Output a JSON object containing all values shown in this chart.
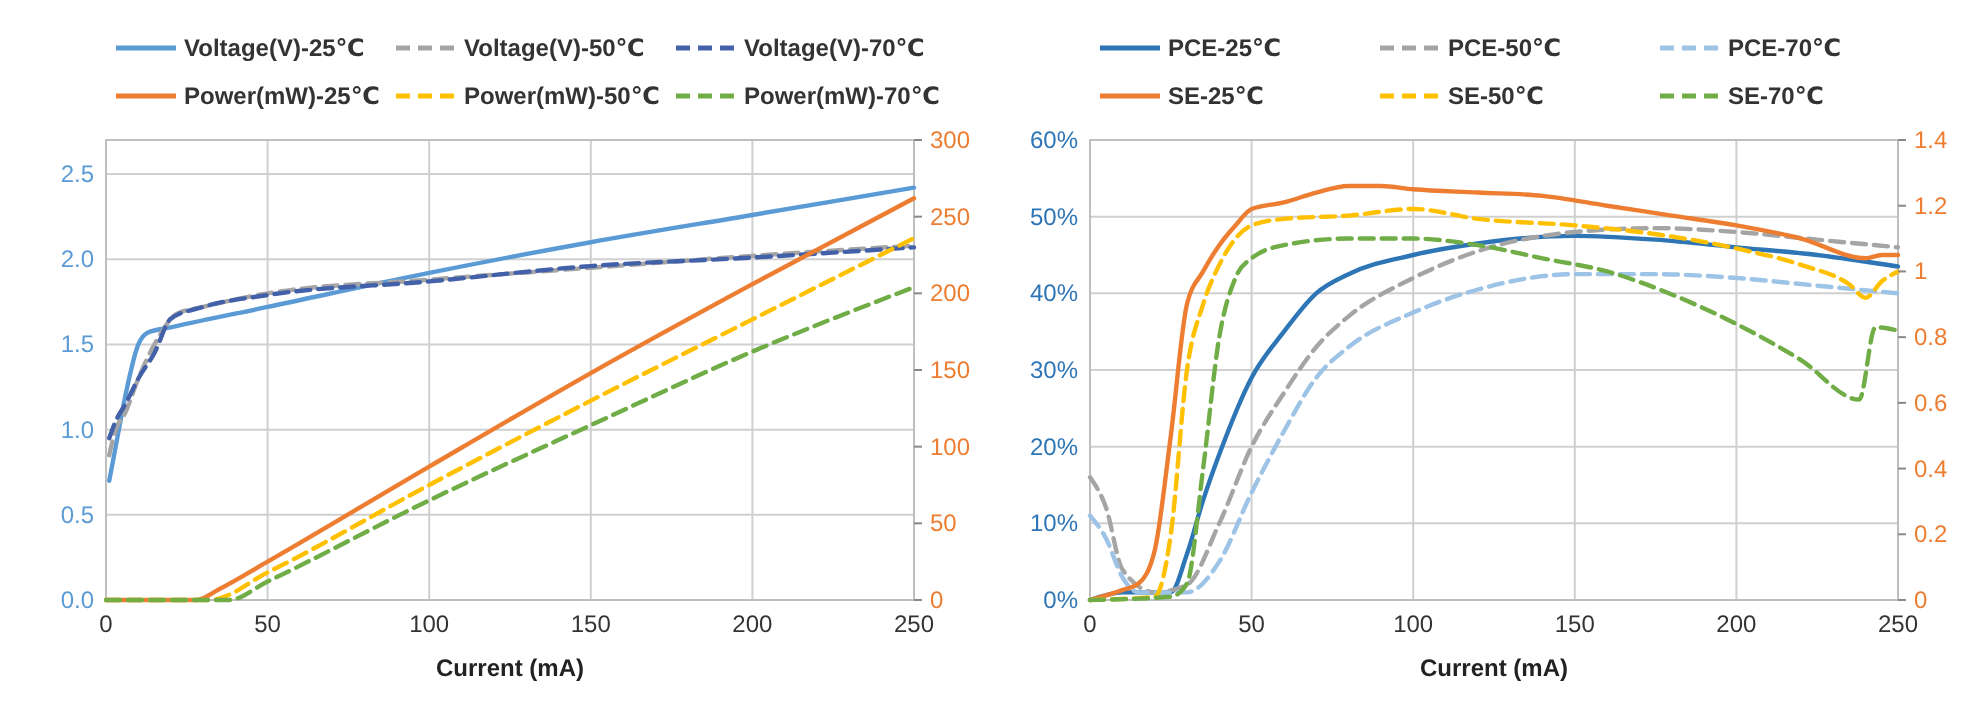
{
  "chart_data": [
    {
      "type": "line",
      "xlabel": "Current (mA)",
      "xlim": [
        0,
        250
      ],
      "xticks": [
        0,
        50,
        100,
        150,
        200,
        250
      ],
      "ylim": [
        0,
        2.7
      ],
      "yticks": [
        {
          "value": 0,
          "label": "0.0"
        },
        {
          "value": 0.5,
          "label": "0.5"
        },
        {
          "value": 1,
          "label": "1.0"
        },
        {
          "value": 1.5,
          "label": "1.5"
        },
        {
          "value": 2,
          "label": "2.0"
        },
        {
          "value": 2.5,
          "label": "2.5"
        }
      ],
      "y2lim": [
        0,
        300
      ],
      "y2ticks": [
        0,
        50,
        100,
        150,
        200,
        250,
        300
      ],
      "grid": true,
      "legend": "top",
      "series": [
        {
          "name": "Voltage(V)-25℃",
          "color": "#5b9bd5",
          "line_style": "solid",
          "x": [
            1,
            3,
            6,
            10,
            13,
            20,
            50,
            100,
            150,
            200,
            250
          ],
          "values": [
            0.7,
            0.9,
            1.2,
            1.5,
            1.57,
            1.6,
            1.72,
            1.92,
            2.1,
            2.26,
            2.42
          ]
        },
        {
          "name": "Voltage(V)-50℃",
          "color": "#a5a5a5",
          "line_style": "dashed",
          "x": [
            1,
            3,
            6,
            10,
            15,
            22,
            30,
            50,
            100,
            150,
            200,
            250
          ],
          "values": [
            0.85,
            1.0,
            1.1,
            1.3,
            1.5,
            1.68,
            1.72,
            1.8,
            1.88,
            1.95,
            2.02,
            2.08
          ]
        },
        {
          "name": "Voltage(V)-70℃",
          "color": "#4361a8",
          "line_style": "dashed",
          "x": [
            1,
            3,
            6,
            10,
            15,
            20,
            30,
            50,
            100,
            150,
            200,
            250
          ],
          "values": [
            0.95,
            1.05,
            1.15,
            1.3,
            1.45,
            1.65,
            1.72,
            1.79,
            1.87,
            1.96,
            2.01,
            2.07
          ]
        },
        {
          "name": "Power(mW)-25℃",
          "color": "#ed7d31",
          "line_style": "solid",
          "axis": "y2",
          "x": [
            0,
            28,
            35,
            50,
            100,
            150,
            200,
            250
          ],
          "values": [
            0,
            0,
            7,
            25,
            87,
            148,
            206,
            262
          ]
        },
        {
          "name": "Power(mW)-50℃",
          "color": "#ffc000",
          "line_style": "dashed",
          "axis": "y2",
          "x": [
            0,
            32,
            50,
            100,
            150,
            200,
            250
          ],
          "values": [
            0,
            0,
            18,
            75,
            130,
            183,
            236
          ]
        },
        {
          "name": "Power(mW)-70℃",
          "color": "#70ad47",
          "line_style": "dashed",
          "axis": "y2",
          "x": [
            0,
            38,
            50,
            100,
            150,
            200,
            250
          ],
          "values": [
            0,
            0,
            12,
            65,
            114,
            162,
            204
          ]
        }
      ]
    },
    {
      "type": "line",
      "xlabel": "Current (mA)",
      "xlim": [
        0,
        250
      ],
      "xticks": [
        0,
        50,
        100,
        150,
        200,
        250
      ],
      "ylim": [
        0,
        60
      ],
      "yticks": [
        {
          "value": 0,
          "label": "0%"
        },
        {
          "value": 10,
          "label": "10%"
        },
        {
          "value": 20,
          "label": "20%"
        },
        {
          "value": 30,
          "label": "30%"
        },
        {
          "value": 40,
          "label": "40%"
        },
        {
          "value": 50,
          "label": "50%"
        },
        {
          "value": 60,
          "label": "60%"
        }
      ],
      "y2lim": [
        0,
        1.4
      ],
      "y2ticks": [
        0,
        0.2,
        0.4,
        0.6,
        0.8,
        1,
        1.2,
        1.4
      ],
      "grid": true,
      "legend": "top",
      "series": [
        {
          "name": "PCE-25℃",
          "color": "#2e75b6",
          "line_style": "solid",
          "x": [
            0,
            10,
            25,
            30,
            35,
            40,
            50,
            60,
            70,
            80,
            100,
            120,
            150,
            175,
            200,
            225,
            250
          ],
          "values": [
            0,
            1,
            1,
            6,
            13,
            19,
            29,
            35,
            40,
            42.5,
            45,
            46.5,
            47.5,
            47,
            46,
            45,
            43.5
          ]
        },
        {
          "name": "PCE-50℃",
          "color": "#a5a5a5",
          "line_style": "dashed",
          "x": [
            0,
            5,
            10,
            20,
            30,
            40,
            50,
            60,
            70,
            80,
            100,
            120,
            150,
            175,
            200,
            225,
            250
          ],
          "values": [
            16,
            12,
            4,
            1,
            2,
            10,
            20,
            27,
            33,
            37,
            42,
            45.5,
            48,
            48.5,
            48,
            47,
            46
          ]
        },
        {
          "name": "PCE-70℃",
          "color": "#9dc3e6",
          "line_style": "dashed",
          "x": [
            0,
            5,
            10,
            15,
            30,
            40,
            50,
            60,
            70,
            80,
            100,
            120,
            150,
            175,
            200,
            225,
            250
          ],
          "values": [
            11,
            8,
            3,
            1,
            1,
            5,
            14,
            22,
            29,
            33,
            37.5,
            40.5,
            42.5,
            42.5,
            42,
            41,
            40
          ]
        },
        {
          "name": "SE-25℃",
          "color": "#ed7d31",
          "line_style": "solid",
          "axis": "y2",
          "x": [
            0,
            10,
            15,
            20,
            25,
            30,
            35,
            40,
            45,
            50,
            60,
            70,
            80,
            90,
            100,
            120,
            140,
            160,
            180,
            200,
            220,
            240,
            245,
            250
          ],
          "values": [
            0,
            0.03,
            0.05,
            0.15,
            0.5,
            0.9,
            1.0,
            1.08,
            1.14,
            1.19,
            1.21,
            1.24,
            1.26,
            1.26,
            1.25,
            1.24,
            1.23,
            1.2,
            1.17,
            1.14,
            1.1,
            1.04,
            1.05,
            1.05
          ]
        },
        {
          "name": "SE-50℃",
          "color": "#ffc000",
          "line_style": "dashed",
          "axis": "y2",
          "x": [
            0,
            20,
            25,
            30,
            35,
            40,
            45,
            50,
            60,
            80,
            100,
            120,
            150,
            170,
            200,
            220,
            235,
            240,
            245,
            250
          ],
          "values": [
            0,
            0.01,
            0.2,
            0.7,
            0.9,
            1.02,
            1.1,
            1.14,
            1.16,
            1.17,
            1.19,
            1.16,
            1.14,
            1.12,
            1.07,
            1.02,
            0.96,
            0.92,
            0.97,
            1.0
          ]
        },
        {
          "name": "SE-70℃",
          "color": "#70ad47",
          "line_style": "dashed",
          "axis": "y2",
          "x": [
            0,
            25,
            30,
            35,
            40,
            45,
            50,
            60,
            80,
            100,
            120,
            140,
            160,
            180,
            200,
            220,
            238,
            243,
            250
          ],
          "values": [
            0,
            0.01,
            0.05,
            0.4,
            0.8,
            0.98,
            1.04,
            1.08,
            1.1,
            1.1,
            1.08,
            1.04,
            1.0,
            0.93,
            0.84,
            0.73,
            0.61,
            0.83,
            0.82
          ]
        }
      ]
    }
  ]
}
